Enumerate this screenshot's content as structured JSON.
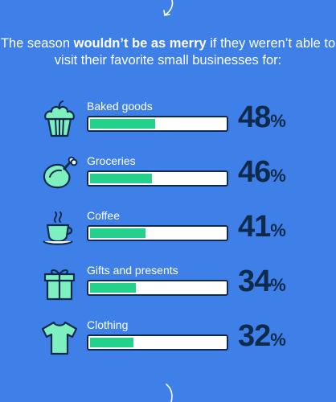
{
  "headline": {
    "pre": "The season ",
    "bold": "wouldn’t be as merry",
    "post": " if they weren’t able to visit their favorite small businesses for:"
  },
  "colors": {
    "background": "#3f7fe8",
    "fill": "#23d18b",
    "outline": "#0e2b4d",
    "icon_fill": "#7ef0c0"
  },
  "chart_data": {
    "type": "bar",
    "orientation": "horizontal",
    "categories": [
      "Baked goods",
      "Groceries",
      "Coffee",
      "Gifts and presents",
      "Clothing"
    ],
    "values": [
      48,
      46,
      41,
      34,
      32
    ],
    "value_suffix": "%",
    "xlim": [
      0,
      100
    ],
    "grid": false,
    "legend": "none"
  },
  "rows": [
    {
      "label": "Baked goods",
      "value": "48",
      "unit": "%",
      "icon": "cupcake-icon"
    },
    {
      "label": "Groceries",
      "value": "46",
      "unit": "%",
      "icon": "roast-chicken-icon"
    },
    {
      "label": "Coffee",
      "value": "41",
      "unit": "%",
      "icon": "coffee-cup-icon"
    },
    {
      "label": "Gifts and presents",
      "value": "34",
      "unit": "%",
      "icon": "gift-icon"
    },
    {
      "label": "Clothing",
      "value": "32",
      "unit": "%",
      "icon": "shirt-icon"
    }
  ]
}
